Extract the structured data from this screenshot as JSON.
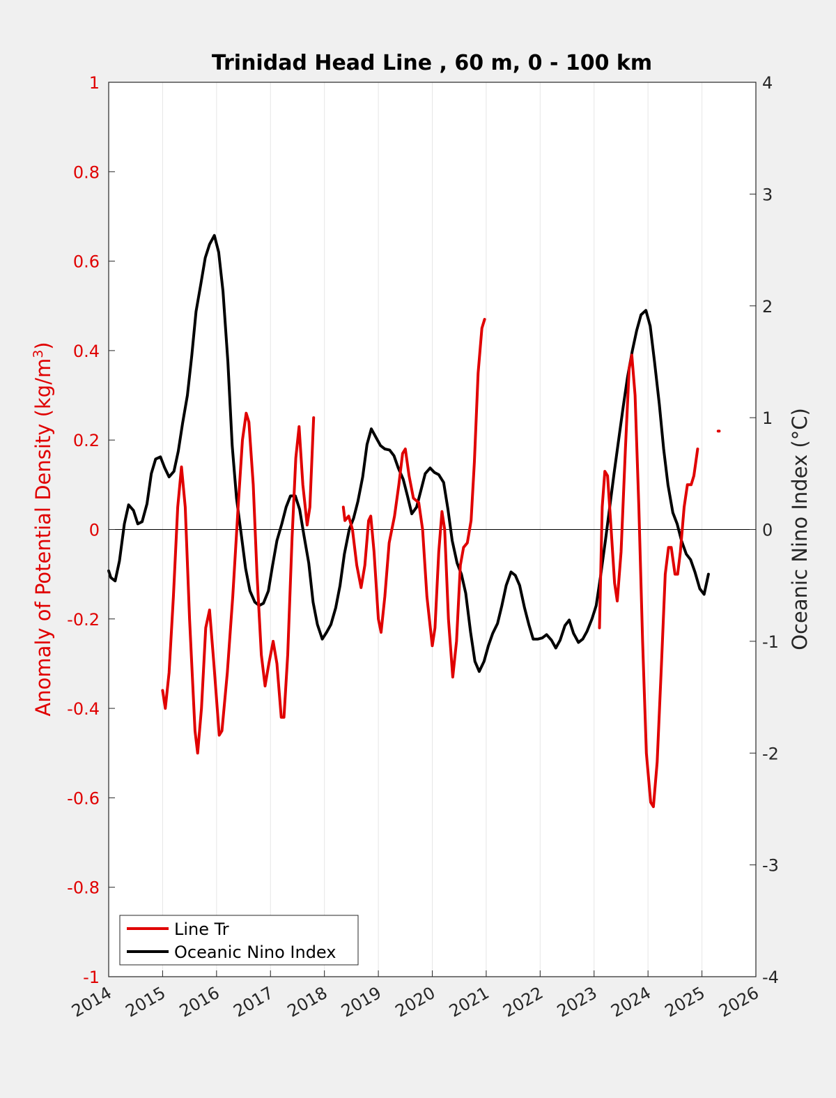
{
  "chart_data": {
    "type": "line",
    "title": "Trinidad Head Line , 60 m, 0 - 100 km",
    "xlabel": "",
    "ylabel_left_prefix": "Anomaly of Potential Density (kg/m",
    "ylabel_left_sup": "3",
    "ylabel_left_suffix": ")",
    "ylabel_right": "Oceanic Nino Index (°C)",
    "xlim": [
      2014,
      2026
    ],
    "ylim_left": [
      -1,
      1
    ],
    "ylim_right": [
      -4,
      4
    ],
    "xticks": [
      "2014",
      "2015",
      "2016",
      "2017",
      "2018",
      "2019",
      "2020",
      "2021",
      "2022",
      "2023",
      "2024",
      "2025",
      "2026"
    ],
    "yticks_left": [
      "1",
      "0.8",
      "0.6",
      "0.4",
      "0.2",
      "0",
      "-0.2",
      "-0.4",
      "-0.6",
      "-0.8",
      "-1"
    ],
    "yticks_right": [
      "4",
      "3",
      "2",
      "1",
      "0",
      "-1",
      "-2",
      "-3",
      "-4"
    ],
    "grid": "vertical",
    "legend_position": "bottom-left",
    "colors": {
      "line_tr": "#e00000",
      "oni": "#000000",
      "left_axis": "#e00000",
      "right_axis": "#262626"
    },
    "series": [
      {
        "name": "Line Tr",
        "axis": "left",
        "segments": [
          [
            [
              2015.0,
              -0.36
            ],
            [
              2015.05,
              -0.4
            ],
            [
              2015.12,
              -0.32
            ],
            [
              2015.2,
              -0.15
            ],
            [
              2015.28,
              0.05
            ],
            [
              2015.35,
              0.14
            ],
            [
              2015.42,
              0.05
            ],
            [
              2015.5,
              -0.2
            ],
            [
              2015.6,
              -0.45
            ],
            [
              2015.65,
              -0.5
            ],
            [
              2015.72,
              -0.4
            ],
            [
              2015.8,
              -0.22
            ],
            [
              2015.87,
              -0.18
            ],
            [
              2015.95,
              -0.3
            ],
            [
              2016.05,
              -0.46
            ],
            [
              2016.1,
              -0.45
            ],
            [
              2016.2,
              -0.32
            ],
            [
              2016.3,
              -0.15
            ],
            [
              2016.4,
              0.05
            ],
            [
              2016.48,
              0.2
            ],
            [
              2016.55,
              0.26
            ],
            [
              2016.6,
              0.24
            ],
            [
              2016.68,
              0.1
            ],
            [
              2016.75,
              -0.1
            ],
            [
              2016.83,
              -0.28
            ],
            [
              2016.9,
              -0.35
            ],
            [
              2016.97,
              -0.3
            ],
            [
              2017.05,
              -0.25
            ],
            [
              2017.12,
              -0.3
            ],
            [
              2017.2,
              -0.42
            ],
            [
              2017.25,
              -0.42
            ],
            [
              2017.32,
              -0.28
            ],
            [
              2017.4,
              -0.02
            ],
            [
              2017.47,
              0.16
            ],
            [
              2017.53,
              0.23
            ],
            [
              2017.6,
              0.1
            ],
            [
              2017.68,
              0.01
            ],
            [
              2017.73,
              0.05
            ],
            [
              2017.8,
              0.25
            ]
          ],
          [
            [
              2018.35,
              0.05
            ],
            [
              2018.38,
              0.02
            ],
            [
              2018.45,
              0.03
            ],
            [
              2018.52,
              0.0
            ],
            [
              2018.6,
              -0.08
            ],
            [
              2018.68,
              -0.13
            ],
            [
              2018.75,
              -0.08
            ],
            [
              2018.82,
              0.02
            ],
            [
              2018.86,
              0.03
            ],
            [
              2018.92,
              -0.05
            ],
            [
              2019.0,
              -0.2
            ],
            [
              2019.05,
              -0.23
            ],
            [
              2019.12,
              -0.15
            ],
            [
              2019.2,
              -0.03
            ],
            [
              2019.3,
              0.03
            ],
            [
              2019.38,
              0.1
            ],
            [
              2019.45,
              0.17
            ],
            [
              2019.5,
              0.18
            ],
            [
              2019.57,
              0.12
            ],
            [
              2019.65,
              0.07
            ],
            [
              2019.75,
              0.06
            ],
            [
              2019.82,
              0.0
            ],
            [
              2019.9,
              -0.15
            ],
            [
              2020.0,
              -0.26
            ],
            [
              2020.05,
              -0.22
            ],
            [
              2020.12,
              -0.05
            ],
            [
              2020.18,
              0.04
            ],
            [
              2020.23,
              0.0
            ],
            [
              2020.3,
              -0.2
            ],
            [
              2020.38,
              -0.33
            ],
            [
              2020.45,
              -0.25
            ],
            [
              2020.52,
              -0.08
            ],
            [
              2020.58,
              -0.04
            ],
            [
              2020.65,
              -0.03
            ],
            [
              2020.72,
              0.02
            ],
            [
              2020.78,
              0.15
            ],
            [
              2020.85,
              0.35
            ],
            [
              2020.92,
              0.45
            ],
            [
              2020.97,
              0.47
            ]
          ],
          [
            [
              2023.1,
              -0.22
            ],
            [
              2023.15,
              0.05
            ],
            [
              2023.2,
              0.13
            ],
            [
              2023.25,
              0.12
            ],
            [
              2023.3,
              0.03
            ],
            [
              2023.38,
              -0.12
            ],
            [
              2023.43,
              -0.16
            ],
            [
              2023.5,
              -0.05
            ],
            [
              2023.58,
              0.18
            ],
            [
              2023.65,
              0.36
            ],
            [
              2023.7,
              0.39
            ],
            [
              2023.76,
              0.3
            ],
            [
              2023.83,
              0.05
            ],
            [
              2023.9,
              -0.25
            ],
            [
              2023.97,
              -0.5
            ],
            [
              2024.05,
              -0.61
            ],
            [
              2024.1,
              -0.62
            ],
            [
              2024.17,
              -0.52
            ],
            [
              2024.25,
              -0.3
            ],
            [
              2024.32,
              -0.1
            ],
            [
              2024.38,
              -0.04
            ],
            [
              2024.43,
              -0.04
            ],
            [
              2024.5,
              -0.1
            ],
            [
              2024.55,
              -0.1
            ],
            [
              2024.6,
              -0.05
            ],
            [
              2024.67,
              0.05
            ],
            [
              2024.73,
              0.1
            ],
            [
              2024.8,
              0.1
            ],
            [
              2024.85,
              0.12
            ],
            [
              2024.92,
              0.18
            ]
          ],
          [
            [
              2025.3,
              0.22
            ],
            [
              2025.32,
              0.22
            ]
          ]
        ]
      },
      {
        "name": "Oceanic Nino Index",
        "axis": "right",
        "segments": [
          [
            [
              2014.0,
              -0.37
            ],
            [
              2014.04,
              -0.43
            ],
            [
              2014.12,
              -0.46
            ],
            [
              2014.2,
              -0.28
            ],
            [
              2014.29,
              0.05
            ],
            [
              2014.37,
              0.22
            ],
            [
              2014.46,
              0.17
            ],
            [
              2014.54,
              0.05
            ],
            [
              2014.62,
              0.07
            ],
            [
              2014.71,
              0.23
            ],
            [
              2014.79,
              0.5
            ],
            [
              2014.87,
              0.63
            ],
            [
              2014.96,
              0.65
            ],
            [
              2015.04,
              0.55
            ],
            [
              2015.12,
              0.47
            ],
            [
              2015.21,
              0.52
            ],
            [
              2015.29,
              0.7
            ],
            [
              2015.37,
              0.95
            ],
            [
              2015.46,
              1.2
            ],
            [
              2015.54,
              1.55
            ],
            [
              2015.62,
              1.95
            ],
            [
              2015.71,
              2.2
            ],
            [
              2015.79,
              2.43
            ],
            [
              2015.87,
              2.55
            ],
            [
              2015.96,
              2.63
            ],
            [
              2016.04,
              2.48
            ],
            [
              2016.12,
              2.13
            ],
            [
              2016.21,
              1.5
            ],
            [
              2016.29,
              0.75
            ],
            [
              2016.37,
              0.28
            ],
            [
              2016.46,
              -0.05
            ],
            [
              2016.54,
              -0.35
            ],
            [
              2016.62,
              -0.55
            ],
            [
              2016.71,
              -0.65
            ],
            [
              2016.79,
              -0.68
            ],
            [
              2016.87,
              -0.66
            ],
            [
              2016.96,
              -0.55
            ],
            [
              2017.04,
              -0.32
            ],
            [
              2017.12,
              -0.1
            ],
            [
              2017.21,
              0.05
            ],
            [
              2017.29,
              0.2
            ],
            [
              2017.37,
              0.3
            ],
            [
              2017.46,
              0.3
            ],
            [
              2017.54,
              0.18
            ],
            [
              2017.62,
              -0.05
            ],
            [
              2017.71,
              -0.3
            ],
            [
              2017.79,
              -0.65
            ],
            [
              2017.87,
              -0.85
            ],
            [
              2017.96,
              -0.98
            ],
            [
              2018.04,
              -0.92
            ],
            [
              2018.12,
              -0.85
            ],
            [
              2018.21,
              -0.7
            ],
            [
              2018.29,
              -0.5
            ],
            [
              2018.37,
              -0.22
            ],
            [
              2018.46,
              0.0
            ],
            [
              2018.54,
              0.1
            ],
            [
              2018.62,
              0.25
            ],
            [
              2018.71,
              0.47
            ],
            [
              2018.79,
              0.76
            ],
            [
              2018.87,
              0.9
            ],
            [
              2018.96,
              0.82
            ],
            [
              2019.04,
              0.75
            ],
            [
              2019.12,
              0.72
            ],
            [
              2019.21,
              0.71
            ],
            [
              2019.29,
              0.66
            ],
            [
              2019.37,
              0.55
            ],
            [
              2019.46,
              0.45
            ],
            [
              2019.54,
              0.3
            ],
            [
              2019.62,
              0.14
            ],
            [
              2019.71,
              0.2
            ],
            [
              2019.79,
              0.35
            ],
            [
              2019.87,
              0.5
            ],
            [
              2019.96,
              0.55
            ],
            [
              2020.04,
              0.51
            ],
            [
              2020.12,
              0.49
            ],
            [
              2020.21,
              0.42
            ],
            [
              2020.29,
              0.18
            ],
            [
              2020.37,
              -0.1
            ],
            [
              2020.46,
              -0.3
            ],
            [
              2020.54,
              -0.4
            ],
            [
              2020.62,
              -0.57
            ],
            [
              2020.71,
              -0.92
            ],
            [
              2020.79,
              -1.18
            ],
            [
              2020.87,
              -1.27
            ],
            [
              2020.96,
              -1.18
            ],
            [
              2021.04,
              -1.04
            ],
            [
              2021.12,
              -0.93
            ],
            [
              2021.21,
              -0.84
            ],
            [
              2021.29,
              -0.68
            ],
            [
              2021.37,
              -0.5
            ],
            [
              2021.46,
              -0.38
            ],
            [
              2021.54,
              -0.41
            ],
            [
              2021.62,
              -0.5
            ],
            [
              2021.71,
              -0.7
            ],
            [
              2021.79,
              -0.85
            ],
            [
              2021.87,
              -0.98
            ],
            [
              2021.96,
              -0.98
            ],
            [
              2022.04,
              -0.97
            ],
            [
              2022.12,
              -0.94
            ],
            [
              2022.21,
              -0.99
            ],
            [
              2022.29,
              -1.06
            ],
            [
              2022.37,
              -0.99
            ],
            [
              2022.46,
              -0.86
            ],
            [
              2022.54,
              -0.81
            ],
            [
              2022.62,
              -0.93
            ],
            [
              2022.71,
              -1.01
            ],
            [
              2022.79,
              -0.98
            ],
            [
              2022.87,
              -0.91
            ],
            [
              2022.96,
              -0.8
            ],
            [
              2023.04,
              -0.68
            ],
            [
              2023.12,
              -0.42
            ],
            [
              2023.21,
              -0.1
            ],
            [
              2023.29,
              0.2
            ],
            [
              2023.37,
              0.5
            ],
            [
              2023.46,
              0.82
            ],
            [
              2023.54,
              1.1
            ],
            [
              2023.62,
              1.36
            ],
            [
              2023.71,
              1.6
            ],
            [
              2023.79,
              1.78
            ],
            [
              2023.87,
              1.92
            ],
            [
              2023.96,
              1.96
            ],
            [
              2024.04,
              1.82
            ],
            [
              2024.12,
              1.5
            ],
            [
              2024.21,
              1.12
            ],
            [
              2024.29,
              0.72
            ],
            [
              2024.37,
              0.4
            ],
            [
              2024.46,
              0.15
            ],
            [
              2024.54,
              0.05
            ],
            [
              2024.62,
              -0.1
            ],
            [
              2024.71,
              -0.22
            ],
            [
              2024.79,
              -0.27
            ],
            [
              2024.87,
              -0.38
            ],
            [
              2024.96,
              -0.53
            ],
            [
              2025.04,
              -0.58
            ],
            [
              2025.12,
              -0.4
            ]
          ]
        ]
      }
    ]
  },
  "legend": {
    "items": [
      {
        "label": "Line Tr",
        "color": "#e00000"
      },
      {
        "label": "Oceanic Nino Index",
        "color": "#000000"
      }
    ]
  }
}
